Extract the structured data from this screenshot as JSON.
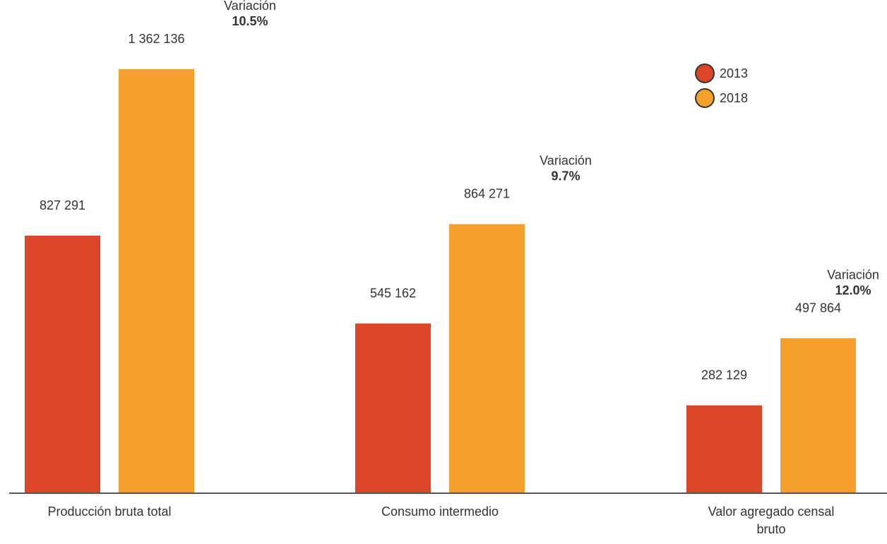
{
  "chart_data": {
    "type": "bar",
    "categories": [
      "Producción bruta total",
      "Consumo intermedio",
      "Valor agregado censal bruto"
    ],
    "category_lines": [
      [
        "Producción bruta total"
      ],
      [
        "Consumo intermedio"
      ],
      [
        "Valor agregado censal",
        "bruto"
      ]
    ],
    "series": [
      {
        "name": "2013",
        "color": "#DB4528",
        "values": [
          827291,
          545162,
          282129
        ],
        "labels": [
          "827 291",
          "545 162",
          "282 129"
        ]
      },
      {
        "name": "2018",
        "color": "#F5A02C",
        "values": [
          1362136,
          864271,
          497864
        ],
        "labels": [
          "1 362 136",
          "864 271",
          "497 864"
        ]
      }
    ],
    "variations": [
      {
        "title": "Variación",
        "value": "10.5%"
      },
      {
        "title": "Variación",
        "value": "9.7%"
      },
      {
        "title": "Variación",
        "value": "12.0%"
      }
    ],
    "ylim": [
      0,
      1362136
    ],
    "grid": false,
    "legend_position": "top-right"
  }
}
